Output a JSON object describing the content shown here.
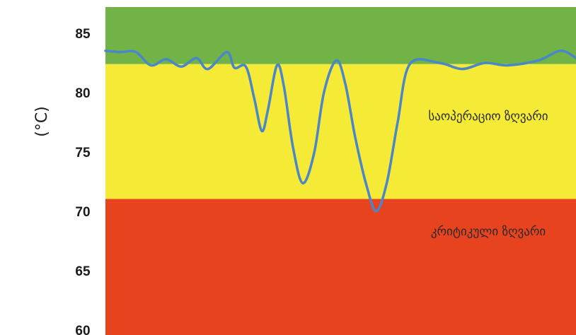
{
  "chart_data": {
    "type": "line",
    "title": "",
    "ylabel": "(°C)",
    "xlabel": "",
    "ylim": [
      60,
      87
    ],
    "yticks": [
      "85",
      "80",
      "75",
      "70",
      "65",
      "60"
    ],
    "grid": false,
    "bands": [
      {
        "from": 82.3,
        "to": 87,
        "color": "#72b347",
        "label": ""
      },
      {
        "from": 71.2,
        "to": 82.3,
        "color": "#f5ea36",
        "label": "საოპერაციო ზღვარი"
      },
      {
        "from": 60,
        "to": 71.2,
        "color": "#e8431f",
        "label": "კრიტიკული ზღვარი"
      }
    ],
    "series": [
      {
        "color": "#4a86c8",
        "points": [
          [
            0,
            83.4
          ],
          [
            2,
            83.3
          ],
          [
            4,
            83.3
          ],
          [
            6,
            82.2
          ],
          [
            8,
            82.7
          ],
          [
            10,
            82.1
          ],
          [
            12,
            82.8
          ],
          [
            13.5,
            81.9
          ],
          [
            16,
            83.3
          ],
          [
            17,
            82.0
          ],
          [
            18.5,
            82.1
          ],
          [
            19.6,
            79.5
          ],
          [
            20.6,
            76.8
          ],
          [
            21.4,
            78.5
          ],
          [
            22.6,
            82.2
          ],
          [
            23.5,
            80.5
          ],
          [
            24.7,
            75.5
          ],
          [
            26.0,
            72.5
          ],
          [
            27.5,
            75.0
          ],
          [
            28.8,
            80.0
          ],
          [
            30.4,
            82.6
          ],
          [
            31.6,
            80.7
          ],
          [
            32.9,
            76.3
          ],
          [
            34.4,
            72.3
          ],
          [
            35.7,
            70.2
          ],
          [
            37.1,
            72.6
          ],
          [
            38.5,
            77.5
          ],
          [
            40.1,
            82.3
          ],
          [
            44,
            82.4
          ],
          [
            47,
            81.9
          ],
          [
            50,
            82.4
          ],
          [
            53,
            82.2
          ],
          [
            57,
            82.6
          ],
          [
            60,
            83.4
          ],
          [
            62,
            82.8
          ]
        ]
      }
    ]
  }
}
